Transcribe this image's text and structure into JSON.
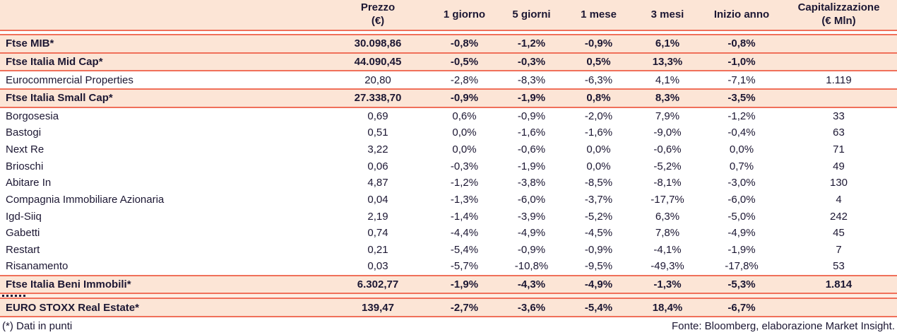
{
  "chart_data": {
    "type": "table",
    "columns": [
      {
        "label": "Prezzo",
        "sub": "(€)"
      },
      {
        "label": "1 giorno",
        "sub": ""
      },
      {
        "label": "5 giorni",
        "sub": ""
      },
      {
        "label": "1 mese",
        "sub": ""
      },
      {
        "label": "3 mesi",
        "sub": ""
      },
      {
        "label": "Inizio anno",
        "sub": ""
      },
      {
        "label": "Capitalizzazione",
        "sub": "(€ Mln)"
      }
    ],
    "rows": [
      {
        "name": "Ftse MIB*",
        "values": [
          "30.098,86",
          "-0,8%",
          "-1,2%",
          "-0,9%",
          "6,1%",
          "-0,8%",
          ""
        ],
        "highlight": true,
        "line_below": true
      },
      {
        "name": "Ftse Italia Mid Cap*",
        "values": [
          "44.090,45",
          "-0,5%",
          "-0,3%",
          "0,5%",
          "13,3%",
          "-1,0%",
          ""
        ],
        "highlight": true,
        "line_below": true
      },
      {
        "name": "Eurocommercial Properties",
        "values": [
          "20,80",
          "-2,8%",
          "-8,3%",
          "-6,3%",
          "4,1%",
          "-7,1%",
          "1.119"
        ],
        "highlight": false,
        "line_below": true
      },
      {
        "name": "Ftse Italia Small Cap*",
        "values": [
          "27.338,70",
          "-0,9%",
          "-1,9%",
          "0,8%",
          "8,3%",
          "-3,5%",
          ""
        ],
        "highlight": true,
        "line_below": true
      },
      {
        "name": "Borgosesia",
        "values": [
          "0,69",
          "0,6%",
          "-0,9%",
          "-2,0%",
          "7,9%",
          "-1,2%",
          "33"
        ],
        "highlight": false,
        "line_below": false
      },
      {
        "name": "Bastogi",
        "values": [
          "0,51",
          "0,0%",
          "-1,6%",
          "-1,6%",
          "-9,0%",
          "-0,4%",
          "63"
        ],
        "highlight": false,
        "line_below": false
      },
      {
        "name": "Next Re",
        "values": [
          "3,22",
          "0,0%",
          "-0,6%",
          "0,0%",
          "-0,6%",
          "0,0%",
          "71"
        ],
        "highlight": false,
        "line_below": false
      },
      {
        "name": "Brioschi",
        "values": [
          "0,06",
          "-0,3%",
          "-1,9%",
          "0,0%",
          "-5,2%",
          "0,7%",
          "49"
        ],
        "highlight": false,
        "line_below": false
      },
      {
        "name": "Abitare In",
        "values": [
          "4,87",
          "-1,2%",
          "-3,8%",
          "-8,5%",
          "-8,1%",
          "-3,0%",
          "130"
        ],
        "highlight": false,
        "line_below": false
      },
      {
        "name": "Compagnia Immobiliare Azionaria",
        "values": [
          "0,04",
          "-1,3%",
          "-6,0%",
          "-3,7%",
          "-17,7%",
          "-6,0%",
          "4"
        ],
        "highlight": false,
        "line_below": false
      },
      {
        "name": "Igd-Siiq",
        "values": [
          "2,19",
          "-1,4%",
          "-3,9%",
          "-5,2%",
          "6,3%",
          "-5,0%",
          "242"
        ],
        "highlight": false,
        "line_below": false
      },
      {
        "name": "Gabetti",
        "values": [
          "0,74",
          "-4,4%",
          "-4,9%",
          "-4,5%",
          "7,8%",
          "-4,9%",
          "45"
        ],
        "highlight": false,
        "line_below": false
      },
      {
        "name": "Restart",
        "values": [
          "0,21",
          "-5,4%",
          "-0,9%",
          "-0,9%",
          "-4,1%",
          "-1,9%",
          "7"
        ],
        "highlight": false,
        "line_below": false
      },
      {
        "name": "Risanamento",
        "values": [
          "0,03",
          "-5,7%",
          "-10,8%",
          "-9,5%",
          "-49,3%",
          "-17,8%",
          "53"
        ],
        "highlight": false,
        "line_below": true
      },
      {
        "name": "Ftse Italia Beni Immobili*",
        "values": [
          "6.302,77",
          "-1,9%",
          "-4,3%",
          "-4,9%",
          "-1,3%",
          "-5,3%",
          "1.814"
        ],
        "highlight": true,
        "line_below": true
      },
      {
        "clipped": true,
        "line_below": true
      },
      {
        "name": "EURO STOXX Real Estate*",
        "values": [
          "139,47",
          "-2,7%",
          "-3,6%",
          "-5,4%",
          "18,4%",
          "-6,7%",
          ""
        ],
        "highlight": true,
        "line_below": true
      }
    ],
    "footnote": "(*) Dati in punti",
    "source": "Fonte: Bloomberg, elaborazione Market Insight."
  },
  "colors": {
    "accent_line": "#f0705a",
    "highlight_bg": "#fce5d6",
    "text": "#1c1733"
  }
}
